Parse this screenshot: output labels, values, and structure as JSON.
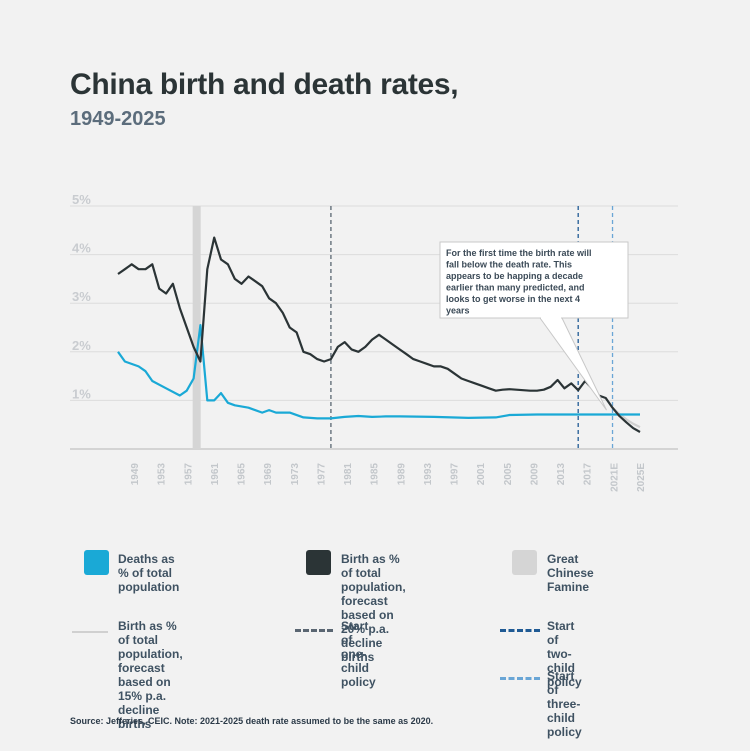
{
  "header": {
    "title": "China birth and death rates,",
    "subtitle": "1949-2025"
  },
  "annotation": {
    "text_lines": [
      "For the first time the birth rate will",
      "fall below the death rate. This",
      "appears to be happing a decade",
      "earlier than many predicted, and",
      "looks to get worse in the next 4",
      "years"
    ]
  },
  "legend": {
    "deaths": {
      "lines": [
        "Deaths as % of total",
        "population"
      ],
      "color": "#1aa9d6"
    },
    "birth20": {
      "lines": [
        "Birth as % of total",
        "population, forecast",
        "based on 20% p.a.",
        "decline births"
      ],
      "color": "#2b3436"
    },
    "famine": {
      "lines": [
        "Great Chinese",
        "Famine"
      ],
      "color": "#d5d5d5"
    },
    "birth15": {
      "lines": [
        "Birth as % of total",
        "population, forecast",
        "based on 15% p.a.",
        "decline births"
      ],
      "color": "#d0d0d0"
    },
    "one_child": {
      "lines": [
        "Start of one-child",
        "policy"
      ],
      "color": "#5a6672"
    },
    "two_child": {
      "lines": [
        "Start of two-child",
        "policy"
      ],
      "color": "#1f5a94"
    },
    "three_child": {
      "lines": [
        "Start of three-child",
        "policy"
      ],
      "color": "#6aa6d6"
    }
  },
  "source": "Source: Jefferies, CEIC. Note: 2021-2025 death rate assumed to be the same as 2020.",
  "chart_data": {
    "type": "line",
    "ylim": [
      0,
      5
    ],
    "yticks": [
      0,
      1,
      2,
      3,
      4,
      5
    ],
    "ytick_labels": [
      "",
      "1%",
      "2%",
      "3%",
      "4%",
      "5%"
    ],
    "xlim": [
      1949,
      2025
    ],
    "xtick_labels": [
      "1949",
      "1953",
      "1957",
      "1961",
      "1965",
      "1969",
      "1973",
      "1977",
      "1981",
      "1985",
      "1989",
      "1993",
      "1997",
      "2001",
      "2005",
      "2009",
      "2013",
      "2017",
      "2021E",
      "2025E"
    ],
    "famine_years": [
      1959,
      1961
    ],
    "policy_lines": {
      "one_child": 1980,
      "two_child": 2016,
      "three_child": 2021
    },
    "series": [
      {
        "key": "deaths",
        "x": [
          1949,
          1950,
          1952,
          1953,
          1954,
          1956,
          1958,
          1959,
          1960,
          1961,
          1962,
          1963,
          1964,
          1965,
          1966,
          1968,
          1970,
          1971,
          1972,
          1974,
          1976,
          1978,
          1980,
          1982,
          1984,
          1986,
          1988,
          1990,
          1995,
          2000,
          2004,
          2006,
          2010,
          2015,
          2020,
          2021,
          2022,
          2023,
          2024,
          2025
        ],
        "y": [
          2.0,
          1.8,
          1.7,
          1.6,
          1.4,
          1.25,
          1.1,
          1.2,
          1.45,
          2.55,
          1.0,
          1.0,
          1.15,
          0.95,
          0.9,
          0.85,
          0.75,
          0.8,
          0.75,
          0.75,
          0.65,
          0.63,
          0.63,
          0.66,
          0.68,
          0.66,
          0.67,
          0.67,
          0.66,
          0.64,
          0.65,
          0.7,
          0.71,
          0.71,
          0.71,
          0.71,
          0.71,
          0.71,
          0.71,
          0.71
        ]
      },
      {
        "key": "birth_20pct",
        "x": [
          1949,
          1950,
          1951,
          1952,
          1953,
          1954,
          1955,
          1956,
          1957,
          1958,
          1959,
          1960,
          1961,
          1962,
          1963,
          1964,
          1965,
          1966,
          1967,
          1968,
          1969,
          1970,
          1971,
          1972,
          1973,
          1974,
          1975,
          1976,
          1977,
          1978,
          1979,
          1980,
          1981,
          1982,
          1983,
          1984,
          1985,
          1986,
          1987,
          1988,
          1989,
          1990,
          1991,
          1992,
          1993,
          1994,
          1995,
          1996,
          1997,
          1998,
          1999,
          2000,
          2001,
          2002,
          2003,
          2004,
          2005,
          2006,
          2007,
          2008,
          2009,
          2010,
          2011,
          2012,
          2013,
          2014,
          2015,
          2016,
          2017,
          2018,
          2019,
          2020,
          2021,
          2022,
          2023,
          2024,
          2025
        ],
        "y": [
          3.6,
          3.7,
          3.8,
          3.7,
          3.7,
          3.8,
          3.3,
          3.2,
          3.4,
          2.9,
          2.5,
          2.1,
          1.8,
          3.7,
          4.35,
          3.9,
          3.8,
          3.5,
          3.4,
          3.55,
          3.45,
          3.35,
          3.1,
          3.0,
          2.8,
          2.5,
          2.4,
          2.0,
          1.95,
          1.85,
          1.8,
          1.85,
          2.1,
          2.2,
          2.05,
          2.0,
          2.1,
          2.25,
          2.35,
          2.25,
          2.15,
          2.05,
          1.95,
          1.85,
          1.8,
          1.75,
          1.7,
          1.7,
          1.65,
          1.55,
          1.45,
          1.4,
          1.35,
          1.3,
          1.25,
          1.2,
          1.22,
          1.23,
          1.22,
          1.21,
          1.2,
          1.2,
          1.22,
          1.28,
          1.42,
          1.25,
          1.35,
          1.21,
          1.4,
          1.25,
          1.1,
          1.05,
          0.85,
          0.68,
          0.55,
          0.43,
          0.35
        ]
      },
      {
        "key": "birth_15pct",
        "x": [
          2020,
          2021,
          2022,
          2023,
          2024,
          2025
        ],
        "y": [
          1.05,
          0.85,
          0.72,
          0.61,
          0.52,
          0.45
        ]
      }
    ]
  }
}
